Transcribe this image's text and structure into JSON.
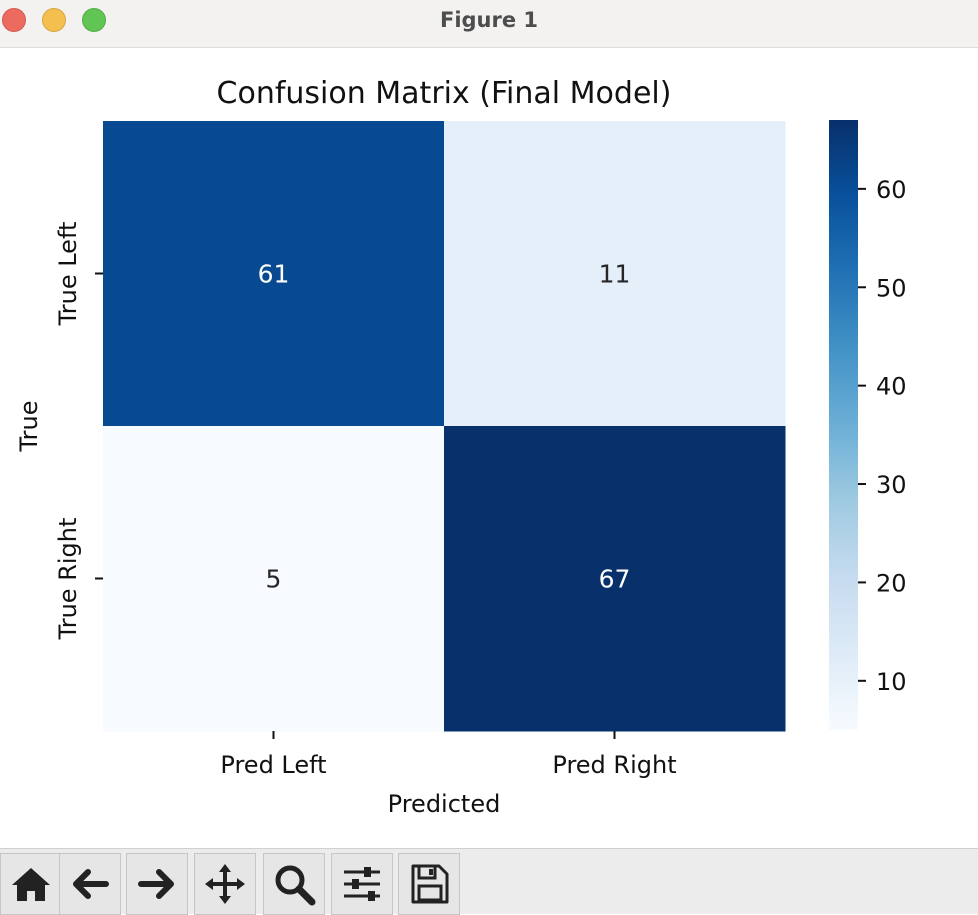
{
  "window": {
    "title": "Figure 1"
  },
  "chart_data": {
    "type": "heatmap",
    "title": "Confusion Matrix (Final Model)",
    "xlabel": "Predicted",
    "ylabel": "True",
    "x_categories": [
      "Pred Left",
      "Pred Right"
    ],
    "y_categories": [
      "True Left",
      "True Right"
    ],
    "values": [
      [
        61,
        11
      ],
      [
        5,
        67
      ]
    ],
    "colormap": "Blues",
    "colorbar": {
      "range": [
        5,
        67
      ],
      "ticks": [
        10,
        20,
        30,
        40,
        50,
        60
      ]
    },
    "grid": false
  },
  "toolbar": {
    "items": [
      {
        "name": "home-icon"
      },
      {
        "name": "back-icon"
      },
      {
        "name": "forward-icon"
      },
      {
        "name": "pan-icon"
      },
      {
        "name": "zoom-icon"
      },
      {
        "name": "configure-subplots-icon"
      },
      {
        "name": "save-icon"
      }
    ]
  }
}
